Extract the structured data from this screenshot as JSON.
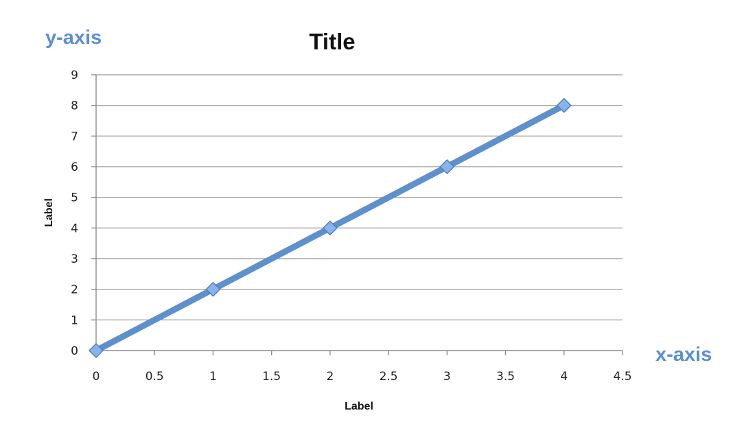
{
  "annotations": {
    "y_axis_note": "y-axis",
    "x_axis_note": "x-axis",
    "color": "#5b8fd0"
  },
  "chart_data": {
    "type": "line",
    "title": "Title",
    "xlabel": "Label",
    "ylabel": "Label",
    "xlim": [
      0,
      4.5
    ],
    "ylim": [
      0,
      9
    ],
    "x_ticks": [
      0,
      0.5,
      1,
      1.5,
      2,
      2.5,
      3,
      3.5,
      4,
      4.5
    ],
    "y_ticks": [
      0,
      1,
      2,
      3,
      4,
      5,
      6,
      7,
      8,
      9
    ],
    "grid": "horizontal",
    "legend": "none",
    "series": [
      {
        "x": [
          0,
          1,
          2,
          3,
          4
        ],
        "values": [
          0,
          2,
          4,
          6,
          8
        ],
        "color": "#5e90cd",
        "marker": "diamond"
      }
    ]
  }
}
